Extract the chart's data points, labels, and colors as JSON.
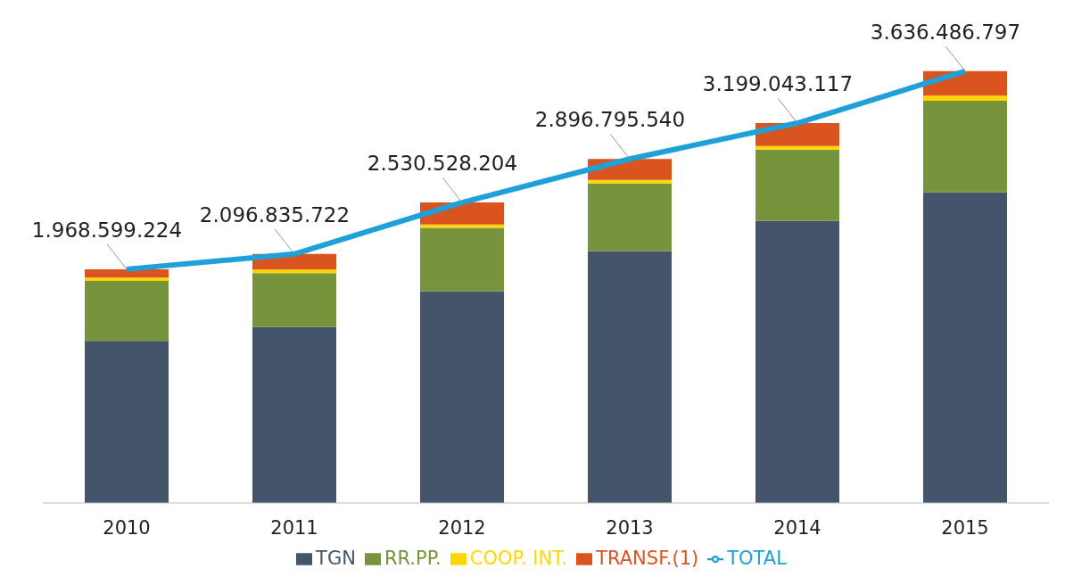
{
  "chart_data": {
    "type": "bar",
    "stacked": true,
    "categories": [
      "2010",
      "2011",
      "2012",
      "2013",
      "2014",
      "2015"
    ],
    "tick_labels": "x",
    "grid": false,
    "legend": "bottom",
    "series": [
      {
        "name": "TGN",
        "color": "#44546a",
        "values": [
          1364000000,
          1481000000,
          1781000000,
          2119000000,
          2375000000,
          2617000000
        ]
      },
      {
        "name": "RR.PP.",
        "color": "#77933c",
        "values": [
          506000000,
          455000000,
          535000000,
          572000000,
          601000000,
          770000000
        ]
      },
      {
        "name": "COOP. INT.",
        "color": "#ffd700",
        "values": [
          29000000,
          29000000,
          29000000,
          29000000,
          29000000,
          44000000
        ]
      },
      {
        "name": "TRANSF.(1)",
        "color": "#d9541e",
        "values": [
          69000000,
          132000000,
          186000000,
          177000000,
          194000000,
          205000000
        ]
      },
      {
        "name": "TOTAL",
        "type": "line",
        "color": "#1fa0d8",
        "marker": "none",
        "line_style": "solid",
        "values": [
          1968599224,
          2096835722,
          2530528204,
          2896795540,
          3199043117,
          3636486797
        ],
        "value_labels": [
          "1.968.599.224",
          "2.096.835.722",
          "2.530.528.204",
          "2.896.795.540",
          "3.199.043.117",
          "3.636.486.797"
        ]
      }
    ]
  }
}
